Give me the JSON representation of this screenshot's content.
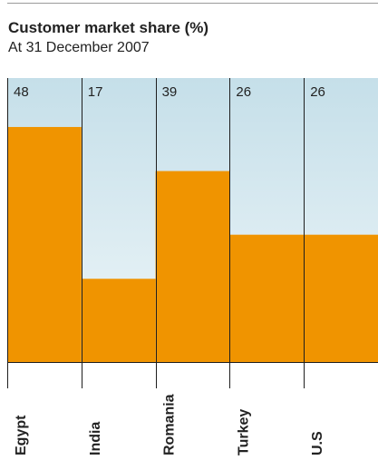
{
  "chart_data": {
    "type": "bar",
    "title": "Customer market share (%)",
    "subtitle": "At 31 December 2007",
    "categories": [
      "Egypt",
      "India",
      "Romania",
      "Turkey",
      "U.S"
    ],
    "values": [
      48,
      17,
      39,
      26,
      26
    ],
    "ylim": [
      0,
      58
    ],
    "xlabel": "",
    "ylabel": "",
    "grid": false,
    "legend": "none",
    "colors": {
      "bar": "#f09400",
      "background_top": "#c5dfe9",
      "background_bottom": "#eef6f9",
      "divider": "#1e1e1e",
      "text": "#222222"
    }
  }
}
